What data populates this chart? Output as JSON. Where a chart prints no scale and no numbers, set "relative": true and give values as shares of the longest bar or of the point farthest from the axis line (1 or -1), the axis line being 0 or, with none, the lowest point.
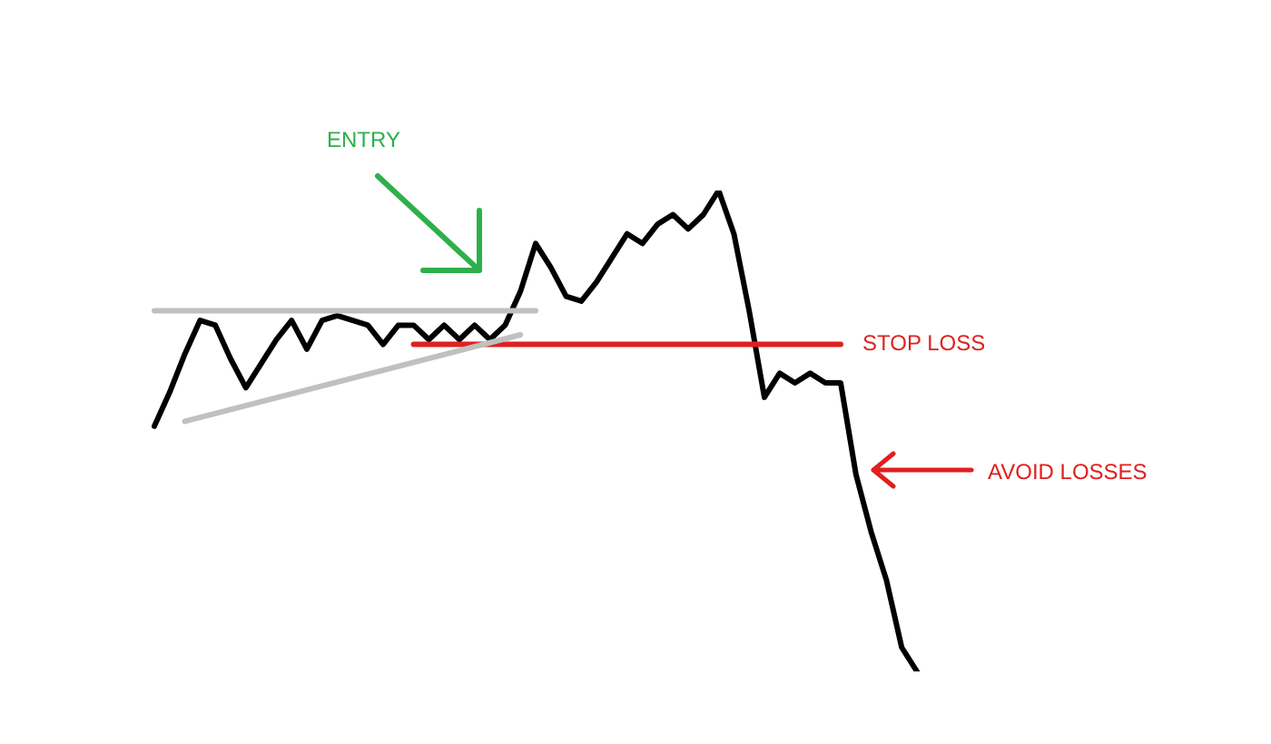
{
  "chart_data": {
    "type": "line",
    "relative": true,
    "legend": false,
    "marker": "none",
    "line_style": "solid",
    "tick_labels": false,
    "categories": [
      null,
      null,
      null,
      null,
      null,
      null,
      null,
      null,
      null,
      null,
      null,
      null,
      null,
      null,
      null,
      null,
      null,
      null,
      null,
      null,
      null,
      null,
      null,
      null,
      null,
      null,
      null,
      null,
      null,
      null,
      null,
      null,
      null,
      null,
      null,
      null,
      null,
      null,
      null,
      null,
      null,
      null,
      null,
      null,
      null,
      null,
      null,
      null,
      null,
      null,
      null
    ],
    "series": [
      {
        "color": "#c0c0c0",
        "values": [
          0.75,
          0.75,
          0.75,
          0.75,
          0.75,
          0.75,
          0.75,
          0.75,
          0.75,
          0.75,
          0.75,
          0.75,
          0.75,
          0.75,
          0.75,
          0.75,
          0.75,
          0.75,
          0.75,
          0.75,
          0.75,
          0.75,
          0.75,
          0.75,
          0.75,
          0.75,
          null,
          null,
          null,
          null,
          null,
          null,
          null,
          null,
          null,
          null,
          null,
          null,
          null,
          null,
          null,
          null,
          null,
          null,
          null,
          null,
          null,
          null,
          null,
          null,
          null
        ]
      },
      {
        "color": "#c0c0c0",
        "values": [
          null,
          null,
          0.52,
          null,
          null,
          null,
          null,
          null,
          null,
          null,
          null,
          null,
          null,
          null,
          null,
          null,
          null,
          null,
          null,
          null,
          null,
          null,
          null,
          null,
          0.7,
          null,
          null,
          null,
          null,
          null,
          null,
          null,
          null,
          null,
          null,
          null,
          null,
          null,
          null,
          null,
          null,
          null,
          null,
          null,
          null,
          null,
          null,
          null,
          null,
          null,
          null
        ]
      },
      {
        "color": "#e0201f",
        "values": [
          null,
          null,
          null,
          null,
          null,
          null,
          null,
          null,
          null,
          null,
          null,
          null,
          null,
          null,
          null,
          null,
          null,
          0.68,
          null,
          null,
          null,
          null,
          null,
          null,
          null,
          null,
          null,
          null,
          null,
          null,
          null,
          null,
          null,
          null,
          null,
          null,
          null,
          null,
          null,
          null,
          null,
          null,
          null,
          null,
          null,
          0.68,
          null,
          null,
          null,
          null,
          null
        ]
      },
      {
        "color": "#000000",
        "values": [
          0.51,
          0.58,
          0.66,
          0.73,
          0.72,
          0.65,
          0.59,
          0.64,
          0.69,
          0.73,
          0.67,
          0.73,
          0.74,
          0.73,
          0.72,
          0.68,
          0.72,
          0.72,
          0.69,
          0.72,
          0.69,
          0.72,
          0.69,
          0.72,
          0.79,
          0.89,
          0.84,
          0.78,
          0.77,
          0.81,
          0.86,
          0.91,
          0.89,
          0.93,
          0.95,
          0.92,
          0.95,
          1,
          0.91,
          0.75,
          0.57,
          0.62,
          0.6,
          0.62,
          0.6,
          0.6,
          0.41,
          0.29,
          0.19,
          0.05,
          0
        ]
      }
    ],
    "annotations": [
      "ENTRY",
      "STOP LOSS",
      "AVOID LOSSES"
    ]
  }
}
